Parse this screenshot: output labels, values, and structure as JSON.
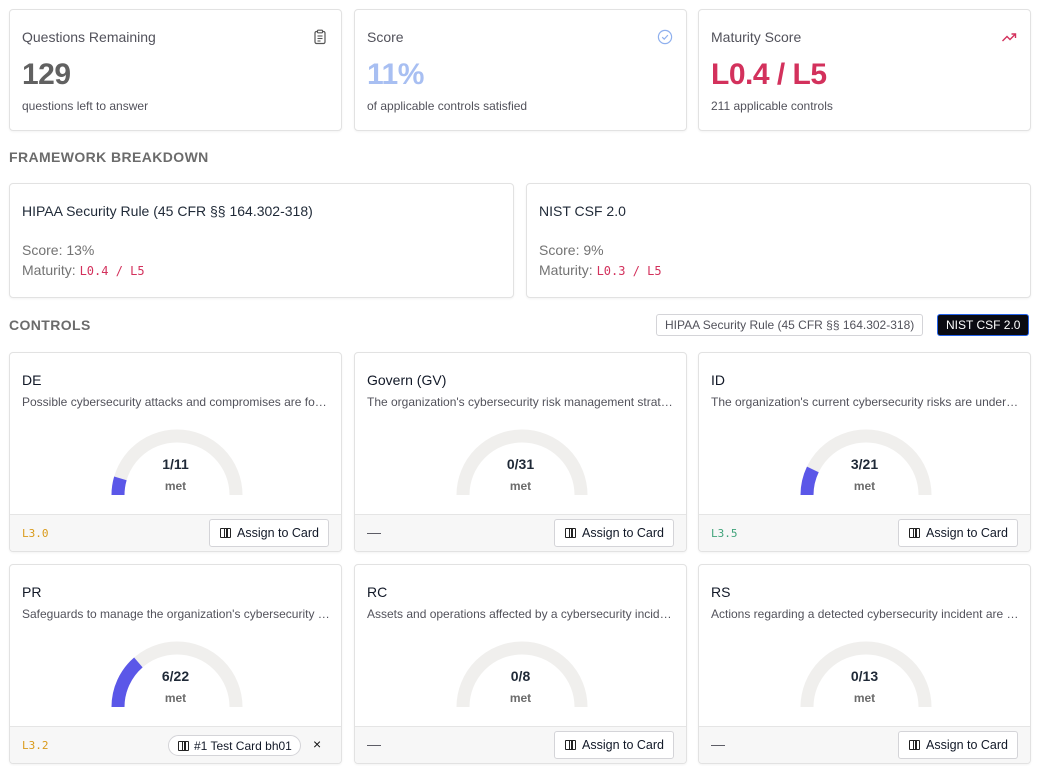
{
  "stats": [
    {
      "title": "Questions Remaining",
      "value": "129",
      "sub": "questions left to answer",
      "icon": "clipboard-icon",
      "value_color": "#616161"
    },
    {
      "title": "Score",
      "value": "11%",
      "sub": "of applicable controls satisfied",
      "icon": "check-circle-icon",
      "value_color": "#a8bff2"
    },
    {
      "title": "Maturity Score",
      "value": "L0.4 / L5",
      "sub": "211 applicable controls",
      "icon": "trending-up-icon",
      "value_color": "#d3315c"
    }
  ],
  "framework_breakdown": {
    "title": "FRAMEWORK BREAKDOWN",
    "items": [
      {
        "name": "HIPAA Security Rule (45 CFR §§ 164.302-318)",
        "score_label": "Score:",
        "score": "13%",
        "maturity_label": "Maturity:",
        "maturity": "L0.4 / L5"
      },
      {
        "name": "NIST CSF 2.0",
        "score_label": "Score:",
        "score": "9%",
        "maturity_label": "Maturity:",
        "maturity": "L0.3 / L5"
      }
    ]
  },
  "controls": {
    "title": "CONTROLS",
    "filters": [
      {
        "label": "HIPAA Security Rule (45 CFR §§ 164.302-318)",
        "active": false
      },
      {
        "label": "NIST CSF 2.0",
        "active": true
      }
    ],
    "met_label": "met",
    "assign_label": "Assign to Card",
    "items": [
      {
        "code": "DE",
        "desc": "Possible cybersecurity attacks and compromises are found and analyzed",
        "met": 1,
        "total": 11,
        "fraction": "1/11",
        "level": "L3.0",
        "level_color": "#d99a1a"
      },
      {
        "code": "Govern (GV)",
        "desc": "The organization's cybersecurity risk management strategy, expectations, and policy",
        "met": 0,
        "total": 31,
        "fraction": "0/31",
        "level": "—",
        "level_color": ""
      },
      {
        "code": "ID",
        "desc": "The organization's current cybersecurity risks are understood",
        "met": 3,
        "total": 21,
        "fraction": "3/21",
        "level": "L3.5",
        "level_color": "#3fa37a"
      },
      {
        "code": "PR",
        "desc": "Safeguards to manage the organization's cybersecurity risks are used",
        "met": 6,
        "total": 22,
        "fraction": "6/22",
        "level": "L3.2",
        "level_color": "#d99a1a",
        "card_chip": "#1 Test Card bh01",
        "chip_remove": "×"
      },
      {
        "code": "RC",
        "desc": "Assets and operations affected by a cybersecurity incident are restored",
        "met": 0,
        "total": 8,
        "fraction": "0/8",
        "level": "—",
        "level_color": ""
      },
      {
        "code": "RS",
        "desc": "Actions regarding a detected cybersecurity incident are taken",
        "met": 0,
        "total": 13,
        "fraction": "0/13",
        "level": "—",
        "level_color": ""
      }
    ]
  },
  "colors": {
    "gauge_track": "#f0efed",
    "gauge_fill": "#5b57e8"
  }
}
